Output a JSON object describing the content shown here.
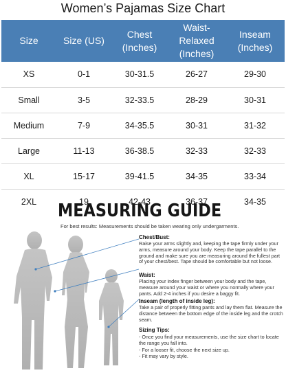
{
  "title": "Women’s Pajamas Size Chart",
  "table": {
    "headers": [
      "Size",
      "Size (US)",
      "Chest (Inches)",
      "Waist-Relaxed (Inches)",
      "Inseam (Inches)"
    ],
    "header_lines": [
      [
        "Size"
      ],
      [
        "Size (US)"
      ],
      [
        "Chest",
        "(Inches)"
      ],
      [
        "Waist-",
        "Relaxed",
        "(Inches)"
      ],
      [
        "Inseam",
        "(Inches)"
      ]
    ],
    "rows": [
      [
        "XS",
        "0-1",
        "30-31.5",
        "26-27",
        "29-30"
      ],
      [
        "Small",
        "3-5",
        "32-33.5",
        "28-29",
        "30-31"
      ],
      [
        "Medium",
        "7-9",
        "34-35.5",
        "30-31",
        "31-32"
      ],
      [
        "Large",
        "11-13",
        "36-38.5",
        "32-33",
        "32-33"
      ],
      [
        "XL",
        "15-17",
        "39-41.5",
        "34-35",
        "33-34"
      ],
      [
        "2XL",
        "19",
        "42-43",
        "36-37",
        "34-35"
      ]
    ]
  },
  "guide": {
    "title": "MEASURING GUIDE",
    "subtitle": "For best results: Measurements should be taken wearing only undergarments.",
    "sections": [
      {
        "heading": "Chest/Bust:",
        "text": "Raise your arms slightly and, keeping the tape firmly under your arms, measure around your body. Keep the tape parallel to the ground and make sure you are measuring around the fullest part of your chest/best. Tape should be comfortable but not loose."
      },
      {
        "heading": "Waist:",
        "text": "Placing your index finger between your body and the tape, measure around your waist or where you normally where your pants. Add 2-4 inches if you desire a baggy fit."
      },
      {
        "heading": "Inseam (length of inside leg):",
        "text": "Take a pair of properly fitting pants and lay them flat. Measure the distance between the bottom edge of the inside leg and the crotch seam."
      }
    ],
    "tips_heading": "Sizing Tips:",
    "tips": [
      "- Once you find your measurements, use the size chart to locate the range you fall into.",
      "- For a looser fit, choose the next size up.",
      "- Fit may vary by style."
    ]
  },
  "colors": {
    "header_bg": "#4a7fb5",
    "header_text": "#ffffff",
    "figure": "#bdbdbd",
    "guide_line": "#3f7fbf"
  }
}
